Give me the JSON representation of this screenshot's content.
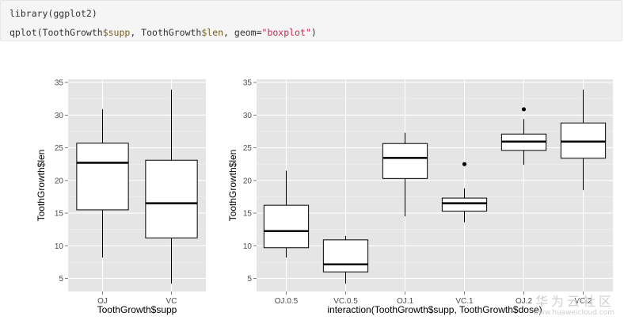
{
  "code": {
    "line1": "library(ggplot2)",
    "line2": {
      "a": "qplot(ToothGrowth",
      "b": "$supp",
      "c": ", ToothGrowth",
      "d": "$len",
      "e": ", geom=",
      "f": "\"boxplot\"",
      "g": ")"
    }
  },
  "watermark": {
    "main": "华为云社区",
    "sub": "www.huaweicloud.com"
  },
  "chart_data": [
    {
      "type": "boxplot",
      "xlabel": "ToothGrowth$supp",
      "ylabel": "ToothGrowth$len",
      "ylim": [
        3,
        35.5
      ],
      "yticks": [
        5,
        10,
        15,
        20,
        25,
        30,
        35
      ],
      "grid": true,
      "categories": [
        "OJ",
        "VC"
      ],
      "boxes": [
        {
          "category": "OJ",
          "whisker_low": 8.2,
          "q1": 15.5,
          "median": 22.7,
          "q3": 25.7,
          "whisker_high": 30.9,
          "outliers": []
        },
        {
          "category": "VC",
          "whisker_low": 4.2,
          "q1": 11.2,
          "median": 16.5,
          "q3": 23.1,
          "whisker_high": 33.9,
          "outliers": []
        }
      ]
    },
    {
      "type": "boxplot",
      "xlabel": "interaction(ToothGrowth$supp, ToothGrowth$dose)",
      "ylabel": "ToothGrowth$len",
      "ylim": [
        3,
        35.5
      ],
      "yticks": [
        5,
        10,
        15,
        20,
        25,
        30,
        35
      ],
      "grid": true,
      "categories": [
        "OJ.0.5",
        "VC.0.5",
        "OJ.1",
        "VC.1",
        "OJ.2",
        "VC.2"
      ],
      "boxes": [
        {
          "category": "OJ.0.5",
          "whisker_low": 8.2,
          "q1": 9.7,
          "median": 12.25,
          "q3": 16.2,
          "whisker_high": 21.5,
          "outliers": []
        },
        {
          "category": "VC.0.5",
          "whisker_low": 4.2,
          "q1": 6.0,
          "median": 7.15,
          "q3": 10.9,
          "whisker_high": 11.5,
          "outliers": []
        },
        {
          "category": "OJ.1",
          "whisker_low": 14.5,
          "q1": 20.3,
          "median": 23.45,
          "q3": 25.65,
          "whisker_high": 27.3,
          "outliers": []
        },
        {
          "category": "VC.1",
          "whisker_low": 13.6,
          "q1": 15.3,
          "median": 16.5,
          "q3": 17.3,
          "whisker_high": 18.8,
          "outliers": [
            22.5
          ]
        },
        {
          "category": "OJ.2",
          "whisker_low": 22.4,
          "q1": 24.6,
          "median": 25.95,
          "q3": 27.1,
          "whisker_high": 29.4,
          "outliers": [
            30.9
          ]
        },
        {
          "category": "VC.2",
          "whisker_low": 18.5,
          "q1": 23.4,
          "median": 25.95,
          "q3": 28.8,
          "whisker_high": 33.9,
          "outliers": []
        }
      ]
    }
  ]
}
